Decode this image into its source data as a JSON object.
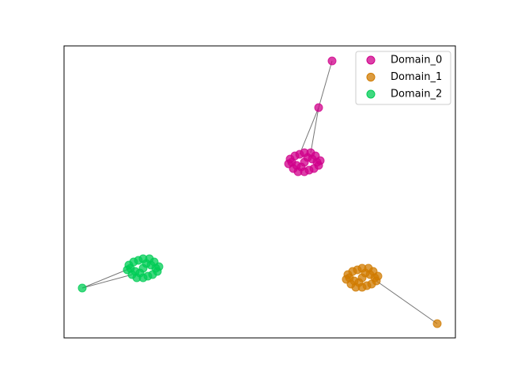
{
  "chart_data": {
    "type": "scatter",
    "xlim": [
      0,
      495
    ],
    "ylim": [
      0,
      369
    ],
    "legend": "upper right",
    "series": [
      {
        "name": "Domain_0",
        "color": "#d0008b",
        "x": [
          339,
          322,
          304,
          314,
          294,
          320,
          288,
          310,
          298,
          316,
          292,
          312,
          296,
          304,
          304,
          322,
          286,
          308,
          300,
          318,
          290,
          324,
          284
        ],
        "y": [
          350,
          291,
          222,
          226,
          218,
          222,
          222,
          212,
          232,
          214,
          230,
          234,
          210,
          234,
          210,
          218,
          226,
          228,
          216,
          230,
          214,
          224,
          220
        ],
        "edges": [
          [
            0,
            1
          ],
          [
            1,
            8
          ],
          [
            1,
            11
          ]
        ]
      },
      {
        "name": "Domain_1",
        "color": "#d07b00",
        "x": [
          472,
          377,
          387,
          367,
          393,
          361,
          383,
          371,
          389,
          365,
          385,
          369,
          377,
          377,
          395,
          359,
          381,
          373,
          391,
          363,
          397,
          357
        ],
        "y": [
          18,
          76,
          80,
          72,
          76,
          76,
          66,
          86,
          68,
          84,
          88,
          64,
          88,
          64,
          72,
          80,
          82,
          70,
          84,
          68,
          78,
          74
        ],
        "edges": [
          [
            0,
            14
          ]
        ]
      },
      {
        "name": "Domain_2",
        "color": "#00cc55",
        "x": [
          23,
          100,
          110,
          90,
          116,
          84,
          106,
          94,
          112,
          88,
          108,
          92,
          100,
          100,
          118,
          82,
          104,
          96,
          114,
          86,
          120,
          80
        ],
        "y": [
          63,
          88,
          92,
          84,
          88,
          88,
          78,
          98,
          80,
          96,
          100,
          76,
          100,
          76,
          84,
          92,
          94,
          82,
          96,
          80,
          90,
          86
        ],
        "edges": [
          [
            0,
            5
          ],
          [
            0,
            19
          ]
        ]
      }
    ]
  }
}
